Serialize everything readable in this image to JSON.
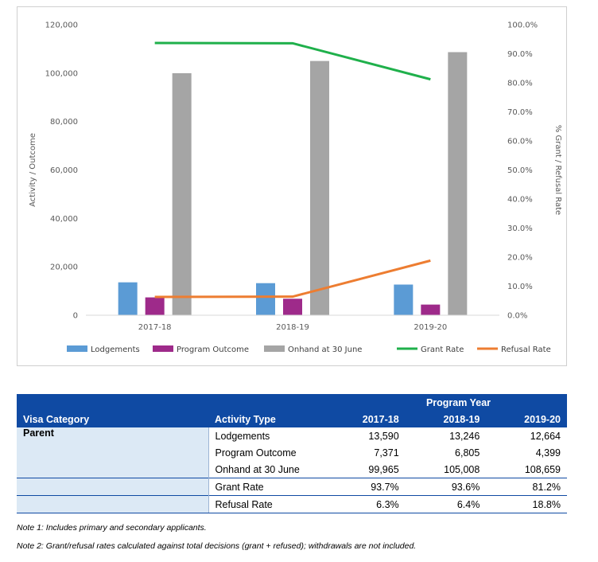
{
  "chart_data": {
    "type": "bar+line",
    "categories": [
      "2017-18",
      "2018-19",
      "2019-20"
    ],
    "series": [
      {
        "name": "Lodgements",
        "kind": "bar",
        "axis": "left",
        "color": "#5b9bd5",
        "values": [
          13590,
          13246,
          12664
        ]
      },
      {
        "name": "Program Outcome",
        "kind": "bar",
        "axis": "left",
        "color": "#9e2a8a",
        "values": [
          7371,
          6805,
          4399
        ]
      },
      {
        "name": "Onhand at 30 June",
        "kind": "bar",
        "axis": "left",
        "color": "#a5a5a5",
        "values": [
          99965,
          105008,
          108659
        ]
      },
      {
        "name": "Grant Rate",
        "kind": "line",
        "axis": "right",
        "color": "#1fb04b",
        "values": [
          93.7,
          93.6,
          81.2
        ]
      },
      {
        "name": "Refusal Rate",
        "kind": "line",
        "axis": "right",
        "color": "#ed7d31",
        "values": [
          6.3,
          6.4,
          18.8
        ]
      }
    ],
    "ylabel": "Activity / Outcome",
    "y2label": "% Grant / Refusal Rate",
    "ylim": [
      0,
      120000
    ],
    "y2lim": [
      0,
      100
    ],
    "yticks": [
      "0",
      "20,000",
      "40,000",
      "60,000",
      "80,000",
      "100,000",
      "120,000"
    ],
    "y2ticks": [
      "0.0%",
      "10.0%",
      "20.0%",
      "30.0%",
      "40.0%",
      "50.0%",
      "60.0%",
      "70.0%",
      "80.0%",
      "90.0%",
      "100.0%"
    ],
    "grid": false,
    "legend_position": "bottom"
  },
  "table": {
    "program_year_label": "Program Year",
    "col_visa_category": "Visa Category",
    "col_activity_type": "Activity Type",
    "years": [
      "2017-18",
      "2018-19",
      "2019-20"
    ],
    "category": "Parent",
    "rows": [
      {
        "label": "Lodgements",
        "values": [
          "13,590",
          "13,246",
          "12,664"
        ]
      },
      {
        "label": "Program Outcome",
        "values": [
          "7,371",
          "6,805",
          "4,399"
        ]
      },
      {
        "label": "Onhand at 30 June",
        "values": [
          "99,965",
          "105,008",
          "108,659"
        ]
      },
      {
        "label": "Grant Rate",
        "values": [
          "93.7%",
          "93.6%",
          "81.2%"
        ]
      },
      {
        "label": "Refusal Rate",
        "values": [
          "6.3%",
          "6.4%",
          "18.8%"
        ]
      }
    ]
  },
  "notes": {
    "note1": "Note 1: Includes primary and secondary applicants.",
    "note2": "Note 2: Grant/refusal rates calculated against total decisions (grant + refused); withdrawals are not included."
  }
}
